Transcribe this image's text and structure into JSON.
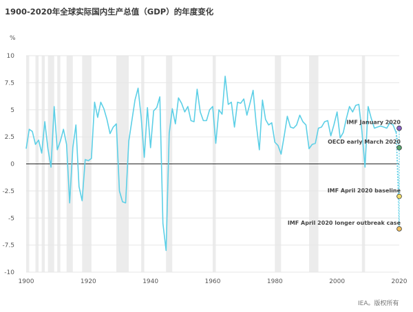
{
  "header": {
    "title": "1900-2020年全球实际国内生产总值（GDP）的年度变化"
  },
  "footer": {
    "credit": "IEA。版权所有"
  },
  "colors": {
    "line": "#5ccfe6",
    "recession_band": "#ececec",
    "grid": "#e6e6e6",
    "zero": "#222222",
    "imf_jan": "#8b64c8",
    "oecd_march": "#5aa870",
    "imf_april": "#f3df6a",
    "imf_outbreak": "#f2c060"
  },
  "chart_data": {
    "type": "line",
    "ylabel": "%",
    "xlim": [
      1900,
      2020
    ],
    "ylim": [
      -10,
      10
    ],
    "x_ticks": [
      1900,
      1920,
      1940,
      1960,
      1980,
      2000,
      2020
    ],
    "y_ticks": [
      10,
      7.5,
      5,
      2.5,
      0,
      -2.5,
      -5,
      -7.5,
      -10
    ],
    "y_tick_labels": [
      "10",
      "7.5",
      "5",
      "2.5",
      "0",
      "-2.5",
      "-5",
      "-7.5",
      "-10"
    ],
    "grid": true,
    "recession_bands": [
      [
        1900,
        1901
      ],
      [
        1903,
        1904
      ],
      [
        1905,
        1906
      ],
      [
        1907,
        1909
      ],
      [
        1910,
        1911
      ],
      [
        1913,
        1915
      ],
      [
        1918,
        1921
      ],
      [
        1929,
        1933
      ],
      [
        1937,
        1938
      ],
      [
        1945,
        1947
      ],
      [
        1960,
        1961
      ],
      [
        1980,
        1982
      ],
      [
        1991,
        1994
      ],
      [
        2008,
        2009
      ]
    ],
    "series": [
      {
        "x": [
          1900,
          1901,
          1902,
          1903,
          1904,
          1905,
          1906,
          1907,
          1908,
          1909,
          1910,
          1911,
          1912,
          1913,
          1914,
          1915,
          1916,
          1917,
          1918,
          1919,
          1920,
          1921,
          1922,
          1923,
          1924,
          1925,
          1926,
          1927,
          1928,
          1929,
          1930,
          1931,
          1932,
          1933,
          1934,
          1935,
          1936,
          1937,
          1938,
          1939,
          1940,
          1941,
          1942,
          1943,
          1944,
          1945,
          1946,
          1947,
          1948,
          1949,
          1950,
          1951,
          1952,
          1953,
          1954,
          1955,
          1956,
          1957,
          1958,
          1959,
          1960,
          1961,
          1962,
          1963,
          1964,
          1965,
          1966,
          1967,
          1968,
          1969,
          1970,
          1971,
          1972,
          1973,
          1974,
          1975,
          1976,
          1977,
          1978,
          1979,
          1980,
          1981,
          1982,
          1983,
          1984,
          1985,
          1986,
          1987,
          1988,
          1989,
          1990,
          1991,
          1992,
          1993,
          1994,
          1995,
          1996,
          1997,
          1998,
          1999,
          2000,
          2001,
          2002,
          2003,
          2004,
          2005,
          2006,
          2007,
          2008,
          2009,
          2010,
          2011,
          2012,
          2013,
          2014,
          2015,
          2016,
          2017,
          2018,
          2019
        ],
        "values": [
          1.4,
          3.2,
          3.0,
          1.8,
          2.2,
          1.0,
          3.9,
          1.4,
          -0.3,
          5.3,
          1.3,
          2.1,
          3.2,
          1.8,
          -3.6,
          1.5,
          3.6,
          -2.1,
          -3.4,
          0.4,
          0.3,
          0.5,
          5.7,
          4.3,
          5.7,
          5.1,
          4.1,
          2.8,
          3.4,
          3.7,
          -2.5,
          -3.5,
          -3.6,
          2.1,
          4.0,
          5.9,
          7.0,
          4.3,
          0.6,
          5.2,
          1.5,
          4.9,
          5.2,
          6.2,
          -5.5,
          -8.0,
          2.8,
          5.1,
          3.7,
          6.1,
          5.6,
          4.8,
          5.3,
          4.0,
          3.9,
          6.9,
          4.8,
          4.0,
          4.0,
          5.0,
          5.3,
          1.9,
          5.0,
          4.6,
          8.1,
          5.5,
          5.7,
          3.4,
          5.7,
          5.6,
          6.0,
          4.5,
          5.6,
          6.8,
          3.7,
          1.3,
          5.9,
          4.1,
          3.6,
          3.8,
          2.0,
          1.7,
          0.9,
          2.6,
          4.4,
          3.4,
          3.3,
          3.6,
          4.5,
          3.9,
          3.6,
          1.4,
          1.8,
          1.9,
          3.3,
          3.4,
          3.9,
          4.0,
          2.6,
          3.6,
          4.8,
          2.4,
          2.9,
          4.2,
          5.3,
          4.8,
          5.4,
          5.5,
          3.0,
          -0.3,
          5.3,
          4.2,
          3.3,
          3.4,
          3.5,
          3.4,
          3.3,
          3.8,
          3.6,
          2.9
        ]
      }
    ],
    "forecasts": [
      {
        "label": "IMF January 2020",
        "x": 2020,
        "value": 3.3,
        "color": "#8b64c8"
      },
      {
        "label": "OECD early March 2020",
        "x": 2020,
        "value": 1.5,
        "color": "#5aa870"
      },
      {
        "label": "IMF April 2020 baseline",
        "x": 2020,
        "value": -3.0,
        "color": "#f3df6a"
      },
      {
        "label": "IMF April 2020 longer outbreak case",
        "x": 2020,
        "value": -6.0,
        "color": "#f2c060"
      }
    ]
  }
}
